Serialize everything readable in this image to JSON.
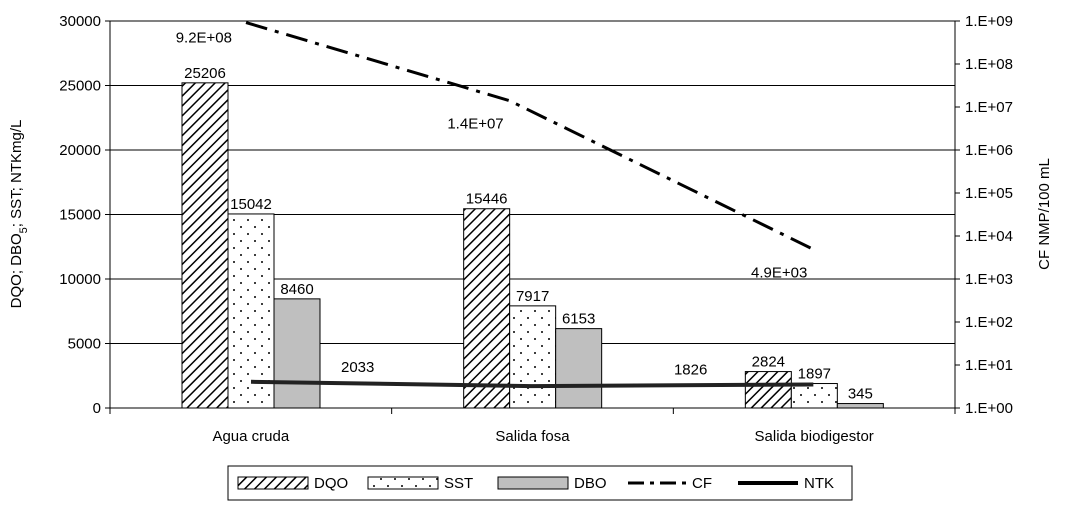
{
  "chart_data": {
    "type": "bar",
    "categories": [
      "Agua cruda",
      "Salida fosa",
      "Salida  biodigestor"
    ],
    "series": [
      {
        "name": "DQO",
        "values": [
          25206,
          15446,
          2824
        ],
        "labels": [
          "25206",
          "15446",
          "2824"
        ]
      },
      {
        "name": "SST",
        "values": [
          15042,
          7917,
          1897
        ],
        "labels": [
          "15042",
          "7917",
          "1897"
        ]
      },
      {
        "name": "DBO",
        "values": [
          8460,
          6153,
          345
        ],
        "labels": [
          "8460",
          "6153",
          "345"
        ]
      }
    ],
    "lines": [
      {
        "name": "CF",
        "axis": "right",
        "style": "dash-dot",
        "values": [
          920000000,
          14000000,
          4900
        ],
        "labels": [
          "9.2E+08",
          "1.4E+07",
          "4.9E+03"
        ]
      },
      {
        "name": "NTK",
        "axis": "left",
        "style": "solid",
        "values": [
          2033,
          1700,
          1826
        ],
        "labels": [
          "2033",
          "",
          "1826"
        ]
      }
    ],
    "ylabel": "DQO; DBO5; SST; NTKmg/L",
    "ylabel_parts": {
      "before": "DQO; DBO",
      "sub": "5",
      "after": "; SST; NTKmg/L"
    },
    "ylim": [
      0,
      30000
    ],
    "yticks": [
      0,
      5000,
      10000,
      15000,
      20000,
      25000,
      30000
    ],
    "y2label": "CF  NMP/100 mL",
    "y2scale": "log",
    "y2lim": [
      1,
      1000000000
    ],
    "y2ticks": [
      "1.E+00",
      "1.E+01",
      "1.E+02",
      "1.E+03",
      "1.E+04",
      "1.E+05",
      "1.E+06",
      "1.E+07",
      "1.E+08",
      "1.E+09"
    ],
    "grid": true,
    "legend_position": "bottom",
    "colors": {
      "DQO": "#ffffff",
      "SST": "#ffffff",
      "DBO": "#bfbfbf",
      "CF": "#000000",
      "NTK": "#222222",
      "grid": "#000000"
    },
    "patterns": {
      "DQO": "diagonal-hatch",
      "SST": "dots",
      "DBO": "solid"
    }
  }
}
